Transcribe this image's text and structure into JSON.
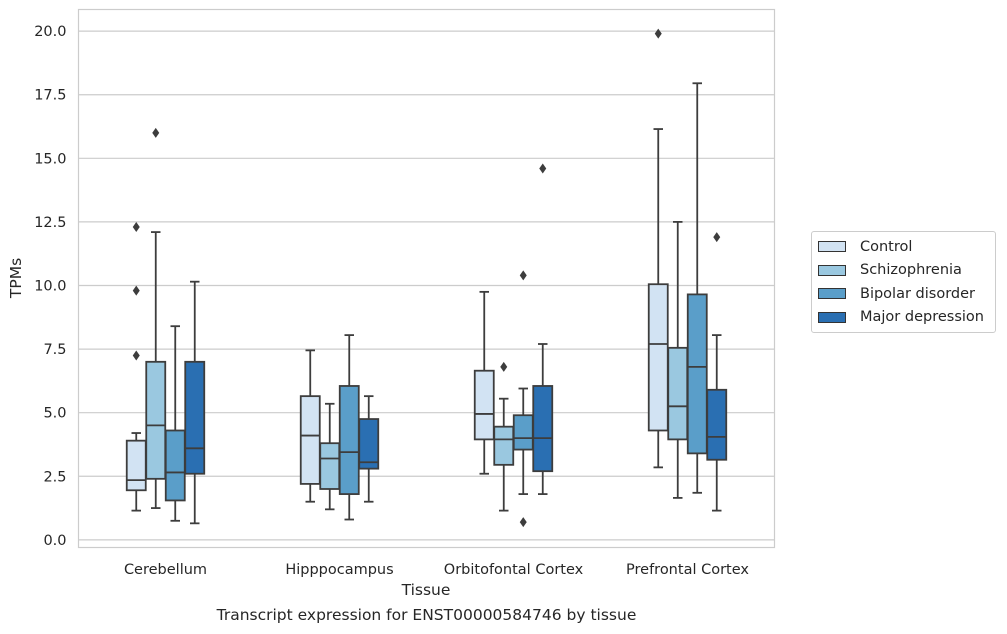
{
  "caption": "Transcript expression for ENST00000584746 by tissue",
  "chart_data": {
    "type": "boxplot",
    "xlabel": "Tissue",
    "ylabel": "TPMs",
    "ylim": [
      -0.3,
      20.85
    ],
    "yticks": [
      "0.0",
      "2.5",
      "5.0",
      "7.5",
      "10.0",
      "12.5",
      "15.0",
      "17.5",
      "20.0"
    ],
    "grid": "horizontal",
    "legend_position": "right",
    "categories": [
      "Cerebellum",
      "Hipppocampus",
      "Orbitofontal Cortex",
      "Prefrontal Cortex"
    ],
    "series": [
      {
        "name": "Control",
        "color": "#d2e3f3",
        "boxes": [
          {
            "whislo": 1.15,
            "q1": 1.95,
            "med": 2.35,
            "q3": 3.9,
            "whishi": 4.2,
            "fliers": [
              7.25,
              9.8,
              12.3
            ]
          },
          {
            "whislo": 1.5,
            "q1": 2.2,
            "med": 4.1,
            "q3": 5.65,
            "whishi": 7.45,
            "fliers": []
          },
          {
            "whislo": 2.6,
            "q1": 3.95,
            "med": 4.95,
            "q3": 6.65,
            "whishi": 9.75,
            "fliers": []
          },
          {
            "whislo": 2.85,
            "q1": 4.3,
            "med": 7.7,
            "q3": 10.05,
            "whishi": 16.15,
            "fliers": [
              19.9
            ]
          }
        ]
      },
      {
        "name": "Schizophrenia",
        "color": "#9ac8e0",
        "boxes": [
          {
            "whislo": 1.25,
            "q1": 2.4,
            "med": 4.5,
            "q3": 7.0,
            "whishi": 12.1,
            "fliers": [
              16.0
            ]
          },
          {
            "whislo": 1.2,
            "q1": 2.0,
            "med": 3.2,
            "q3": 3.8,
            "whishi": 5.35,
            "fliers": []
          },
          {
            "whislo": 1.15,
            "q1": 2.95,
            "med": 3.95,
            "q3": 4.45,
            "whishi": 5.55,
            "fliers": [
              6.8
            ]
          },
          {
            "whislo": 1.65,
            "q1": 3.95,
            "med": 5.25,
            "q3": 7.55,
            "whishi": 12.5,
            "fliers": []
          }
        ]
      },
      {
        "name": "Bipolar disorder",
        "color": "#5a9ec9",
        "boxes": [
          {
            "whislo": 0.75,
            "q1": 1.55,
            "med": 2.65,
            "q3": 4.3,
            "whishi": 8.4,
            "fliers": []
          },
          {
            "whislo": 0.8,
            "q1": 1.8,
            "med": 3.45,
            "q3": 6.05,
            "whishi": 8.05,
            "fliers": []
          },
          {
            "whislo": 1.8,
            "q1": 3.55,
            "med": 4.0,
            "q3": 4.9,
            "whishi": 5.95,
            "fliers": [
              0.7,
              10.4
            ]
          },
          {
            "whislo": 1.85,
            "q1": 3.4,
            "med": 6.8,
            "q3": 9.65,
            "whishi": 17.95,
            "fliers": []
          }
        ]
      },
      {
        "name": "Major depression",
        "color": "#2a6fb2",
        "boxes": [
          {
            "whislo": 0.65,
            "q1": 2.6,
            "med": 3.6,
            "q3": 7.0,
            "whishi": 10.15,
            "fliers": []
          },
          {
            "whislo": 1.5,
            "q1": 2.8,
            "med": 3.05,
            "q3": 4.75,
            "whishi": 5.65,
            "fliers": []
          },
          {
            "whislo": 1.8,
            "q1": 2.7,
            "med": 4.0,
            "q3": 6.05,
            "whishi": 7.7,
            "fliers": [
              14.6
            ]
          },
          {
            "whislo": 1.15,
            "q1": 3.15,
            "med": 4.05,
            "q3": 5.9,
            "whishi": 8.05,
            "fliers": [
              11.9
            ]
          }
        ]
      }
    ]
  }
}
